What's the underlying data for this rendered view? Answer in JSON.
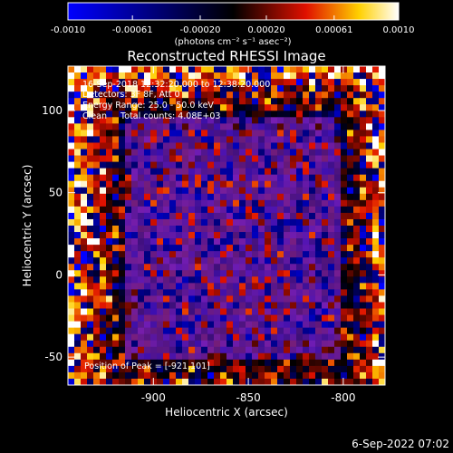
{
  "colorbar": {
    "tick_labels": [
      "-0.0010",
      "-0.00061",
      "-0.00020",
      "0.00020",
      "0.00061",
      "0.0010"
    ],
    "tick_values": [
      -0.001,
      -0.00061,
      -0.0002,
      0.0002,
      0.00061,
      0.001
    ],
    "range": [
      -0.001,
      0.001
    ],
    "units": "(photons cm⁻² s⁻¹ asec⁻²)",
    "colors": [
      "#0000ff",
      "#000000",
      "#ff0000",
      "#ffff00",
      "#ffffff"
    ]
  },
  "chart_data": {
    "type": "heatmap",
    "title": "Reconstructed RHESSI Image",
    "xlabel": "Heliocentric X (arcsec)",
    "ylabel": "Heliocentric Y (arcsec)",
    "xlim": [
      -945,
      -778
    ],
    "ylim": [
      -67,
      127
    ],
    "x_tick_labels": [
      "-900",
      "-850",
      "-800"
    ],
    "x_ticks": [
      -900,
      -850,
      -800
    ],
    "y_tick_labels": [
      "100",
      "50",
      "0",
      "-50"
    ],
    "y_ticks": [
      100,
      50,
      0,
      -50
    ],
    "peak_position": [
      -921,
      101
    ],
    "total_counts": "4.08E+03",
    "annotations": {
      "time_range": "16-Sep-2018 12:32:20.000 to 12:38:20.000",
      "detectors": "Detectors: 3F 8F, Att 0",
      "energy": "Energy Range: 25.0 - 50.0 keV",
      "method": "Clean     Total counts: 4.08E+03",
      "peak": "Position of Peak = [-921,101]"
    }
  },
  "footer": {
    "timestamp": "6-Sep-2022 07:02"
  }
}
